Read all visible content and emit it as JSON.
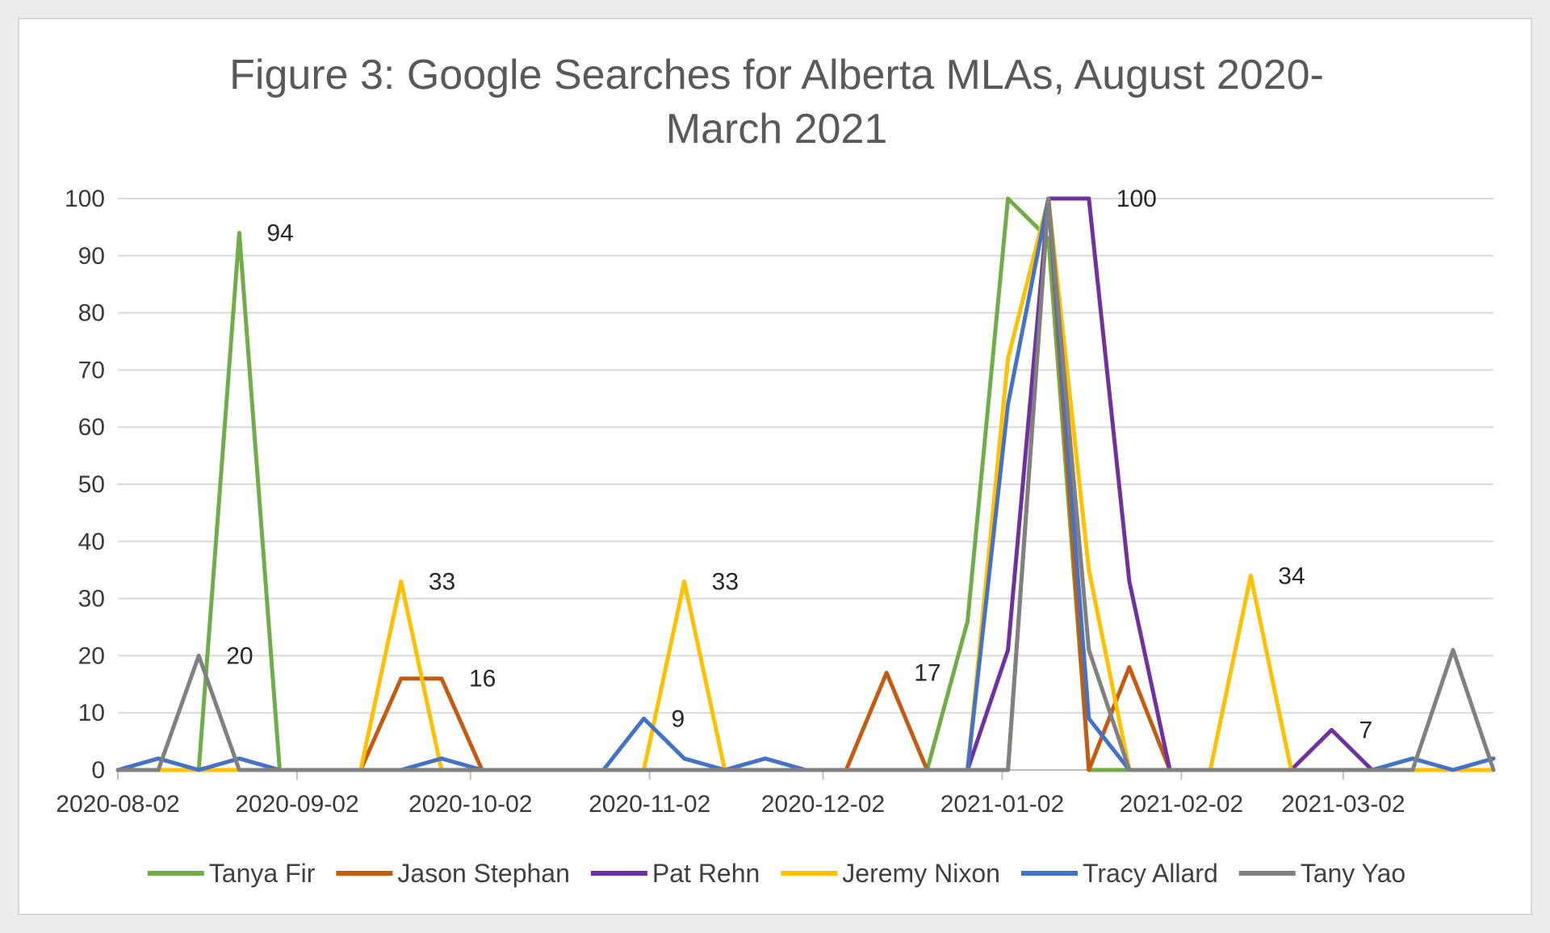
{
  "chart_data": {
    "type": "line",
    "title": "Figure 3: Google Searches for Alberta MLAs, August 2020-March 2021",
    "title_lines": [
      "Figure 3: Google Searches for Alberta MLAs, August 2020-",
      "March 2021"
    ],
    "xlabel": "",
    "ylabel": "",
    "ylim": [
      0,
      100
    ],
    "y_ticks": [
      0,
      10,
      20,
      30,
      40,
      50,
      60,
      70,
      80,
      90,
      100
    ],
    "x_tick_labels": [
      "2020-08-02",
      "2020-09-02",
      "2020-10-02",
      "2020-11-02",
      "2020-12-02",
      "2021-01-02",
      "2021-02-02",
      "2021-03-02"
    ],
    "x": [
      "2020-08-02",
      "2020-08-09",
      "2020-08-16",
      "2020-08-23",
      "2020-08-30",
      "2020-09-06",
      "2020-09-13",
      "2020-09-20",
      "2020-09-27",
      "2020-10-04",
      "2020-10-11",
      "2020-10-18",
      "2020-10-25",
      "2020-11-01",
      "2020-11-08",
      "2020-11-15",
      "2020-11-22",
      "2020-11-29",
      "2020-12-06",
      "2020-12-13",
      "2020-12-20",
      "2020-12-27",
      "2021-01-03",
      "2021-01-10",
      "2021-01-17",
      "2021-01-24",
      "2021-01-31",
      "2021-02-07",
      "2021-02-14",
      "2021-02-21",
      "2021-02-28",
      "2021-03-07",
      "2021-03-14",
      "2021-03-21",
      "2021-03-28"
    ],
    "grid": true,
    "legend_position": "bottom",
    "series": [
      {
        "name": "Tanya Fir",
        "color": "#70ad47",
        "values": [
          0,
          0,
          0,
          94,
          0,
          0,
          0,
          0,
          0,
          0,
          0,
          0,
          0,
          0,
          0,
          0,
          0,
          0,
          0,
          0,
          0,
          26,
          100,
          93,
          0,
          0,
          0,
          0,
          0,
          0,
          0,
          0,
          0,
          0,
          0
        ]
      },
      {
        "name": "Jason Stephan",
        "color": "#c55a11",
        "values": [
          0,
          0,
          0,
          0,
          0,
          0,
          0,
          16,
          16,
          0,
          0,
          0,
          0,
          0,
          0,
          0,
          0,
          0,
          0,
          17,
          0,
          0,
          0,
          100,
          0,
          18,
          0,
          0,
          0,
          0,
          0,
          0,
          0,
          0,
          0
        ]
      },
      {
        "name": "Pat Rehn",
        "color": "#7030a0",
        "values": [
          0,
          0,
          0,
          0,
          0,
          0,
          0,
          0,
          0,
          0,
          0,
          0,
          0,
          0,
          0,
          0,
          0,
          0,
          0,
          0,
          0,
          0,
          21,
          100,
          100,
          33,
          0,
          0,
          0,
          0,
          7,
          0,
          0,
          0,
          0
        ]
      },
      {
        "name": "Jeremy Nixon",
        "color": "#ffc000",
        "values": [
          0,
          0,
          0,
          0,
          0,
          0,
          0,
          33,
          0,
          0,
          0,
          0,
          0,
          0,
          33,
          0,
          0,
          0,
          0,
          0,
          0,
          0,
          72,
          100,
          35,
          0,
          0,
          0,
          34,
          0,
          0,
          0,
          0,
          0,
          0
        ]
      },
      {
        "name": "Tracy Allard",
        "color": "#4472c4",
        "values": [
          0,
          2,
          0,
          2,
          0,
          0,
          0,
          0,
          2,
          0,
          0,
          0,
          0,
          9,
          2,
          0,
          2,
          0,
          0,
          0,
          0,
          0,
          64,
          100,
          9,
          0,
          0,
          0,
          0,
          0,
          0,
          0,
          2,
          0,
          2
        ]
      },
      {
        "name": "Tany Yao",
        "color": "#808080",
        "values": [
          0,
          0,
          20,
          0,
          0,
          0,
          0,
          0,
          0,
          0,
          0,
          0,
          0,
          0,
          0,
          0,
          0,
          0,
          0,
          0,
          0,
          0,
          0,
          100,
          21,
          0,
          0,
          0,
          0,
          0,
          0,
          0,
          0,
          21,
          0
        ]
      }
    ],
    "data_labels": [
      {
        "text": "94",
        "series": "Tanya Fir",
        "index": 3
      },
      {
        "text": "20",
        "series": "Tany Yao",
        "index": 2
      },
      {
        "text": "33",
        "series": "Jeremy Nixon",
        "index": 7
      },
      {
        "text": "16",
        "series": "Jason Stephan",
        "index": 8
      },
      {
        "text": "9",
        "series": "Tracy Allard",
        "index": 13
      },
      {
        "text": "33",
        "series": "Jeremy Nixon",
        "index": 14
      },
      {
        "text": "17",
        "series": "Jason Stephan",
        "index": 19
      },
      {
        "text": "100",
        "series": "Pat Rehn",
        "index": 24
      },
      {
        "text": "34",
        "series": "Jeremy Nixon",
        "index": 28
      },
      {
        "text": "7",
        "series": "Pat Rehn",
        "index": 30
      }
    ]
  }
}
